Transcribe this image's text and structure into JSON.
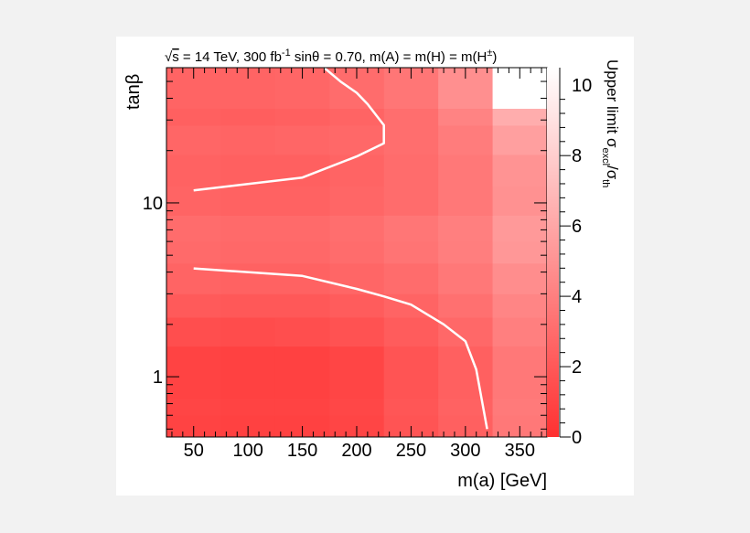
{
  "chart_data": {
    "type": "heatmap",
    "title_parts": {
      "sqrt_sign": "√",
      "sqrt_arg": "s",
      "energy": " = 14 TeV, 300 fb",
      "lumi_exp": "-1",
      "rest": "  sinθ = 0.70, m(A) = m(H) = m(H",
      "charge": "±",
      "close": ")"
    },
    "xlabel": "m(a) [GeV]",
    "ylabel": "tanβ",
    "zlabel_parts": {
      "main": "Upper limit σ",
      "sub1": "excl",
      "slash": "/σ",
      "sub2": "th"
    },
    "xlim": [
      25,
      375
    ],
    "ylim": [
      0.45,
      60
    ],
    "yscale": "log",
    "zlim": [
      0,
      10.5
    ],
    "x_ticks": [
      50,
      100,
      150,
      200,
      250,
      300,
      350
    ],
    "y_ticks": [
      1,
      10
    ],
    "z_ticks": [
      0,
      2,
      4,
      6,
      8,
      10
    ],
    "x_edges": [
      25,
      75,
      125,
      175,
      225,
      275,
      325,
      375
    ],
    "y_edges": [
      0.45,
      0.6,
      0.75,
      1.5,
      2.2,
      3.0,
      4.5,
      6.0,
      8.5,
      12.5,
      19,
      28,
      35,
      60
    ],
    "z_values": [
      [
        0.9,
        0.8,
        0.8,
        1.0,
        1.8,
        2.4,
        3.6
      ],
      [
        1.0,
        0.9,
        0.9,
        1.1,
        1.9,
        2.5,
        3.7
      ],
      [
        0.9,
        0.8,
        0.8,
        1.0,
        1.8,
        2.4,
        3.6
      ],
      [
        1.5,
        1.4,
        1.5,
        1.7,
        2.2,
        2.8,
        4.0
      ],
      [
        2.1,
        2.0,
        2.0,
        2.2,
        2.6,
        3.2,
        4.3
      ],
      [
        2.6,
        2.5,
        2.5,
        2.7,
        3.0,
        3.6,
        4.7
      ],
      [
        2.9,
        2.8,
        2.8,
        3.0,
        3.4,
        3.9,
        5.2
      ],
      [
        3.0,
        2.9,
        2.9,
        3.1,
        3.5,
        4.0,
        5.3
      ],
      [
        2.6,
        2.5,
        2.5,
        2.7,
        3.0,
        3.6,
        4.9
      ],
      [
        2.5,
        2.4,
        2.4,
        2.6,
        3.0,
        3.6,
        5.0
      ],
      [
        2.7,
        2.6,
        2.7,
        2.8,
        3.1,
        3.8,
        5.6
      ],
      [
        2.4,
        2.3,
        2.4,
        2.6,
        3.1,
        4.2,
        6.3
      ],
      [
        2.6,
        2.6,
        2.7,
        3.0,
        3.5,
        4.8,
        10.5
      ]
    ],
    "contours": [
      {
        "x": [
          170,
          185,
          200,
          210,
          225,
          225,
          200,
          150,
          50
        ],
        "y": [
          60,
          50,
          43,
          37,
          28,
          22,
          18.5,
          14,
          11.8
        ]
      },
      {
        "x": [
          50,
          150,
          200,
          225,
          250,
          280,
          300,
          310,
          320
        ],
        "y": [
          4.2,
          3.8,
          3.2,
          2.9,
          2.6,
          2.0,
          1.6,
          1.1,
          0.5
        ]
      }
    ],
    "grid": false,
    "colors": {
      "zmin": "#ff3131",
      "zmax": "#ffffff",
      "contour": "#ffffff",
      "figure_bg": "#ffffff",
      "page_bg": "#f2f2f2"
    }
  }
}
